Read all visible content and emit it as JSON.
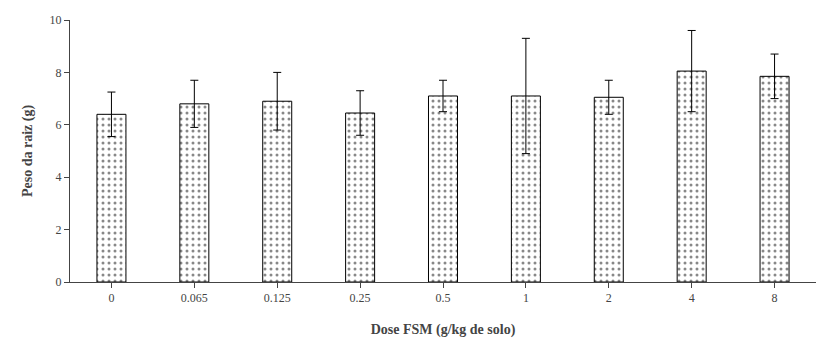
{
  "chart_data": {
    "type": "bar",
    "categories": [
      "0",
      "0.065",
      "0.125",
      "0.25",
      "0.5",
      "1",
      "2",
      "4",
      "8"
    ],
    "values": [
      6.4,
      6.8,
      6.9,
      6.45,
      7.1,
      7.1,
      7.05,
      8.05,
      7.85
    ],
    "errors": [
      0.85,
      0.9,
      1.1,
      0.85,
      0.6,
      2.2,
      0.65,
      1.55,
      0.85
    ],
    "xlabel": "Dose FSM (g/kg de solo)",
    "ylabel": "Peso da raiz (g)",
    "ylim": [
      0,
      10
    ],
    "yticks": [
      0,
      2,
      4,
      6,
      8,
      10
    ],
    "color": "#ffffff",
    "grid": false
  }
}
